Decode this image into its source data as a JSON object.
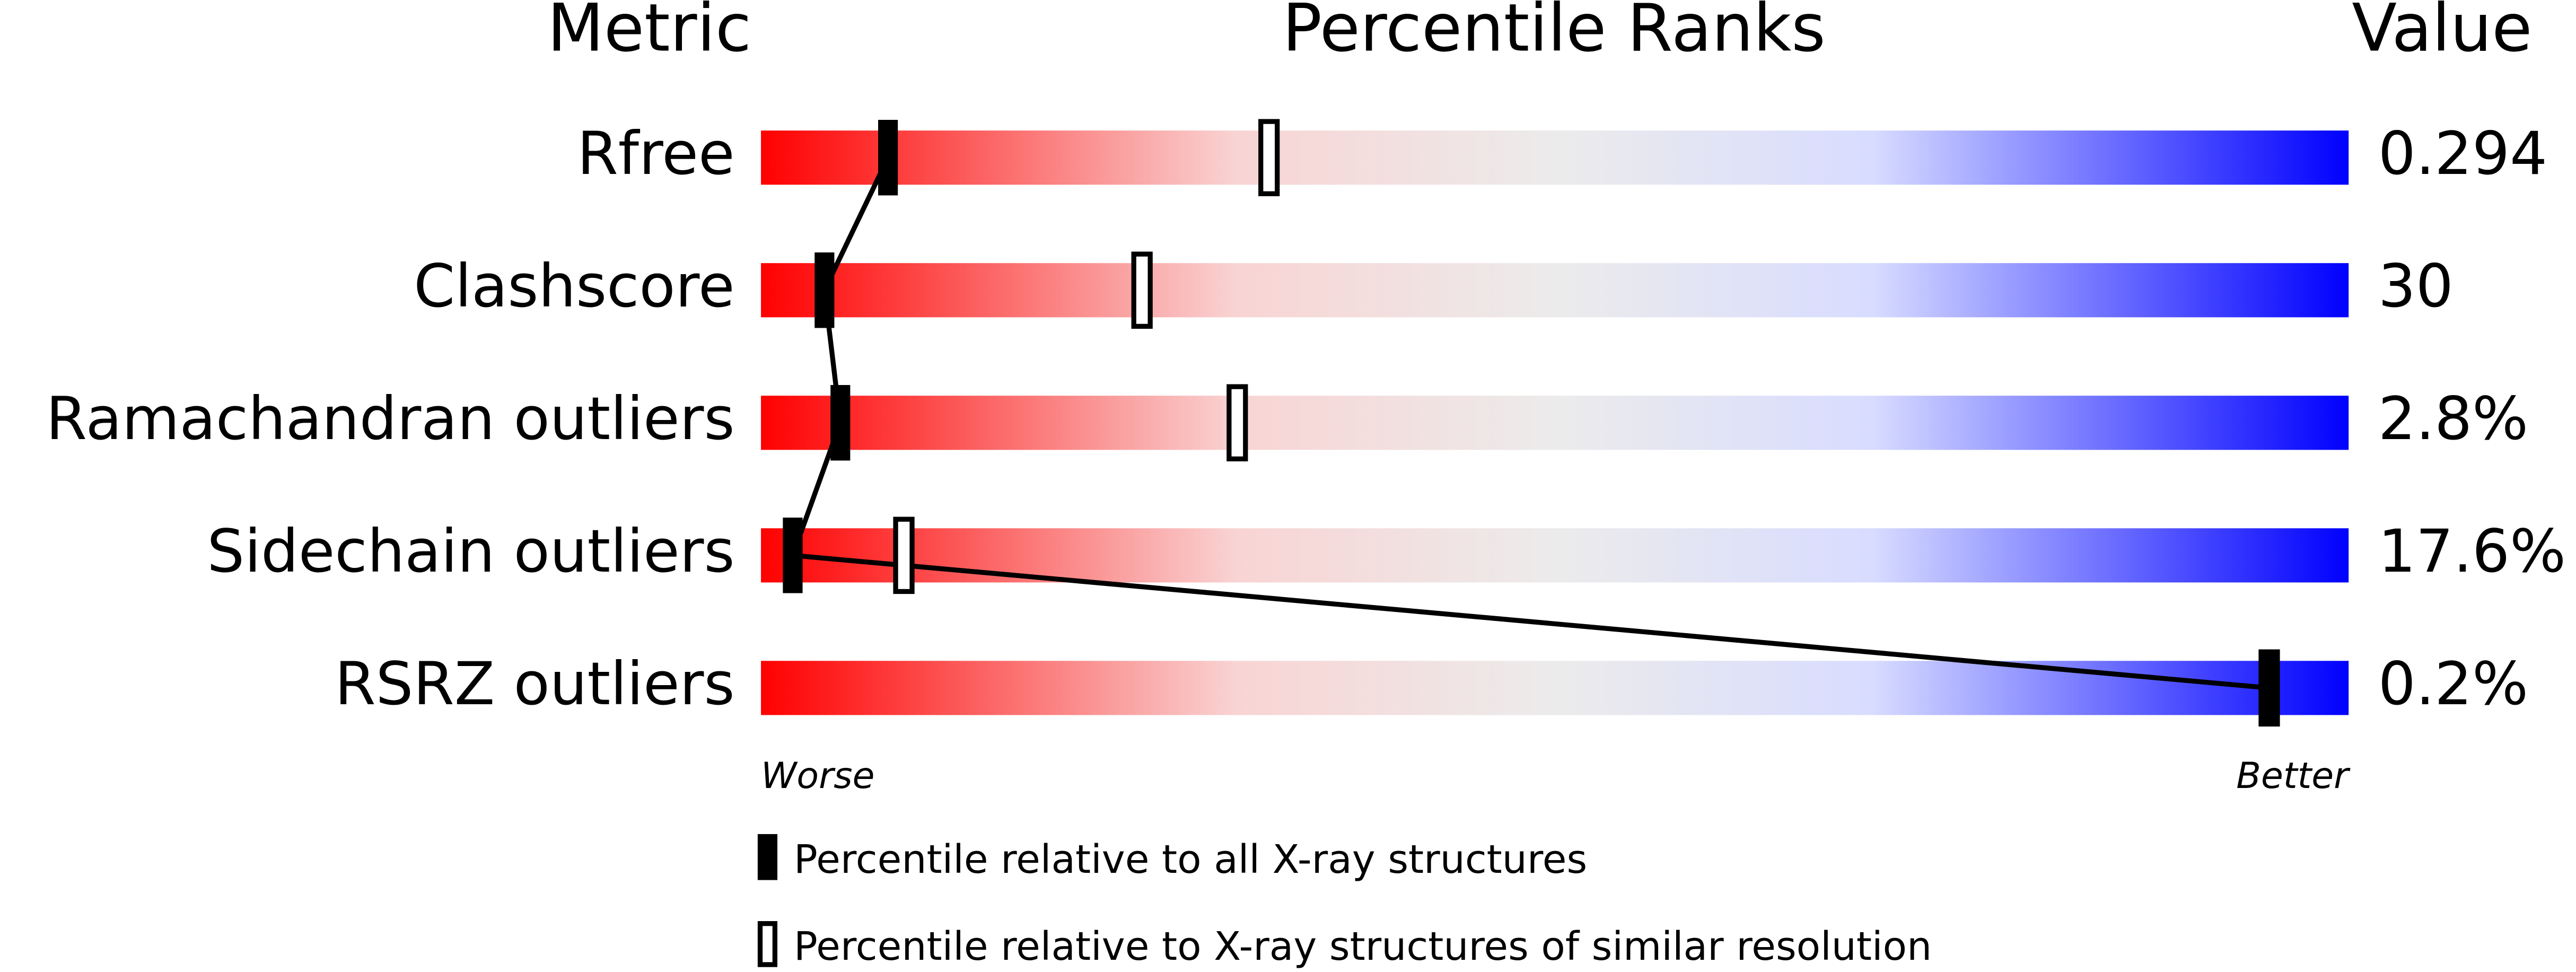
{
  "chart_data": {
    "type": "percentile",
    "title": "Percentile Ranks",
    "metric_header": "Metric",
    "value_header": "Value",
    "categories": [
      "Rfree",
      "Clashscore",
      "Ramachandran outliers",
      "Sidechain outliers",
      "RSRZ outliers"
    ],
    "metric_values": [
      "0.294",
      "30",
      "2.8%",
      "17.6%",
      "0.2%"
    ],
    "xlim": [
      0,
      100
    ],
    "worse_label": "Worse",
    "better_label": "Better",
    "series": [
      {
        "name": "Percentile relative to all X-ray structures",
        "color": "#000000",
        "values": [
          8,
          4,
          5,
          2,
          95
        ]
      },
      {
        "name": "Percentile relative to X-ray structures of similar resolution",
        "color": "#000000",
        "values": [
          32,
          24,
          30,
          9,
          95
        ]
      }
    ]
  }
}
